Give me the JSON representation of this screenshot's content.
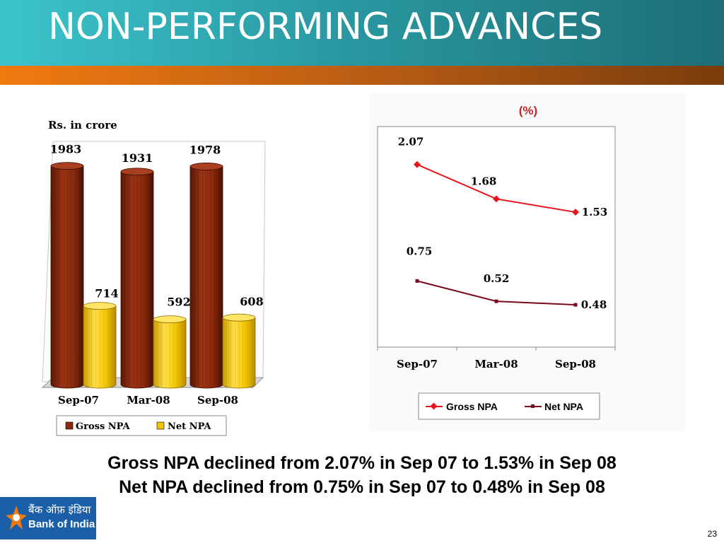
{
  "slide": {
    "title": "NON-PERFORMING ADVANCES",
    "summary_line1": "Gross NPA declined from 2.07% in Sep 07 to 1.53% in Sep 08",
    "summary_line2": "Net NPA declined from 0.75% in Sep 07 to 0.48% in Sep 08",
    "page_number": "23"
  },
  "logo": {
    "hindi_text": "बैंक ऑफ़ इंडिया",
    "english_text": "Bank of India"
  },
  "colors": {
    "gross_bar": "#8B2A0E",
    "net_bar": "#F2C500",
    "gross_line": "#E8141C",
    "net_line": "#7A0A1E"
  },
  "chart_data": [
    {
      "type": "bar",
      "style": "3d-cylinder",
      "unit_label": "Rs. in crore",
      "categories": [
        "Sep-07",
        "Mar-08",
        "Sep-08"
      ],
      "series": [
        {
          "name": "Gross NPA",
          "values": [
            1983,
            1931,
            1978
          ]
        },
        {
          "name": "Net NPA",
          "values": [
            714,
            592,
            608
          ]
        }
      ],
      "legend_position": "bottom",
      "data_labels": true
    },
    {
      "type": "line",
      "title": "(%)",
      "categories": [
        "Sep-07",
        "Mar-08",
        "Sep-08"
      ],
      "series": [
        {
          "name": "Gross NPA",
          "values": [
            2.07,
            1.68,
            1.53
          ],
          "marker": "diamond"
        },
        {
          "name": "Net NPA",
          "values": [
            0.75,
            0.52,
            0.48
          ],
          "marker": "square"
        }
      ],
      "ylim": [
        0,
        2.5
      ],
      "legend_position": "bottom",
      "data_labels": true
    }
  ]
}
